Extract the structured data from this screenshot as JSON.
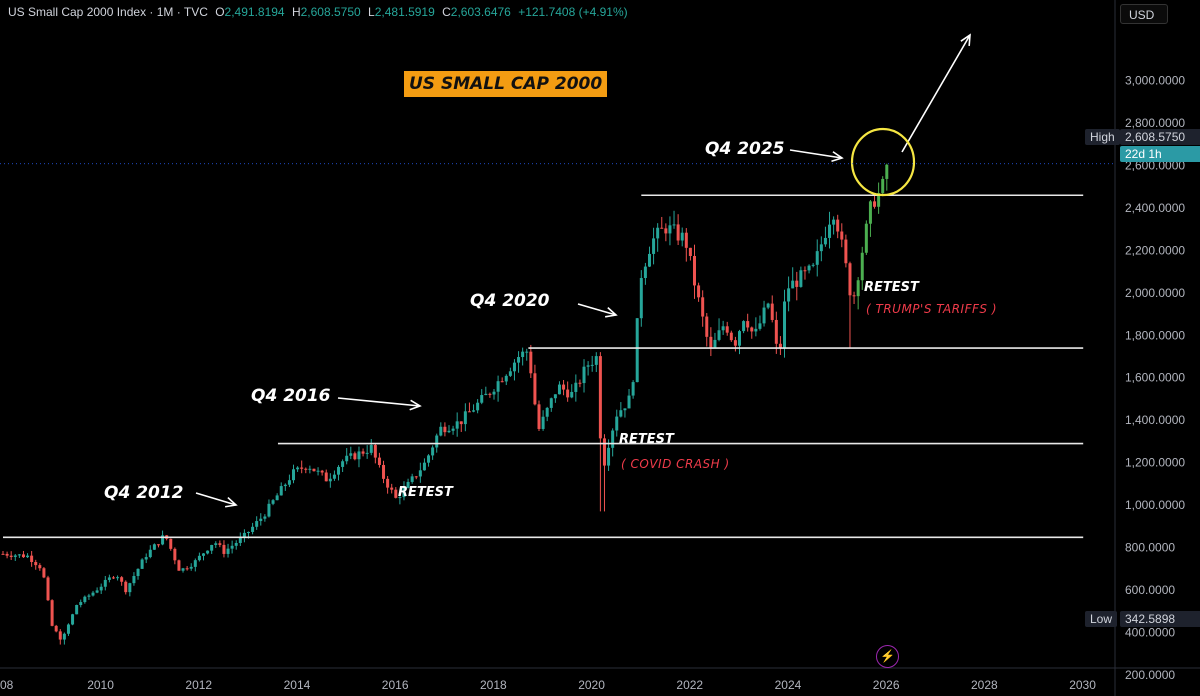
{
  "header": {
    "symbol": "US Small Cap 2000 Index · 1M · TVC",
    "open_label": "O",
    "open": "2,491.8194",
    "high_label": "H",
    "high": "2,608.5750",
    "low_label": "L",
    "low": "2,481.5919",
    "close_label": "C",
    "close": "2,603.6476",
    "change": "+121.7408 (+4.91%)"
  },
  "currency": "USD",
  "price_tags": {
    "high_label": "High",
    "high_value": "2,608.5750",
    "time_to_close": "22d 1h",
    "low_label": "Low",
    "low_value": "342.5898"
  },
  "annotations": {
    "title": "US SMALL CAP 2000",
    "q4_2012": "Q4 2012",
    "q4_2016": "Q4 2016",
    "q4_2020": "Q4 2020",
    "q4_2025": "Q4 2025",
    "retest_2016": "RETEST",
    "retest_2020": "RETEST",
    "covid": "( COVID CRASH )",
    "retest_2025": "RETEST",
    "tariffs": "( TRUMP'S TARIFFS )"
  },
  "icons": {
    "replay": "lightning-icon"
  },
  "colors": {
    "up": "#26a69a",
    "up_bright": "#4caf50",
    "down": "#ef5350",
    "highlight": "#f5e642",
    "title_bg": "#f39c12",
    "tariff_text": "#ef3b4a"
  },
  "chart_data": {
    "type": "candlestick",
    "interval": "1M",
    "x_ticks": [
      "08",
      "2010",
      "2012",
      "2014",
      "2016",
      "2018",
      "2020",
      "2022",
      "2024",
      "2026",
      "2028",
      "2030"
    ],
    "y_ticks": [
      "3,000.0000",
      "2,800.0000",
      "2,600.0000",
      "2,400.0000",
      "2,200.0000",
      "2,000.0000",
      "1,800.0000",
      "1,600.0000",
      "1,400.0000",
      "1,200.0000",
      "1,000.0000",
      "800.0000",
      "600.0000",
      "400.0000",
      "200.0000"
    ],
    "ylim": [
      140,
      3160
    ],
    "xlim": [
      2008.0,
      2030.6
    ],
    "path": [
      [
        2008.0,
        770
      ],
      [
        2008.5,
        760
      ],
      [
        2008.8,
        700
      ],
      [
        2009.0,
        430
      ],
      [
        2009.2,
        360
      ],
      [
        2009.5,
        530
      ],
      [
        2009.9,
        600
      ],
      [
        2010.3,
        680
      ],
      [
        2010.5,
        600
      ],
      [
        2010.9,
        760
      ],
      [
        2011.3,
        860
      ],
      [
        2011.6,
        690
      ],
      [
        2011.9,
        730
      ],
      [
        2012.3,
        830
      ],
      [
        2012.5,
        780
      ],
      [
        2012.9,
        850
      ],
      [
        2013.3,
        950
      ],
      [
        2013.9,
        1150
      ],
      [
        2014.2,
        1190
      ],
      [
        2014.6,
        1120
      ],
      [
        2014.9,
        1205
      ],
      [
        2015.5,
        1270
      ],
      [
        2015.7,
        1150
      ],
      [
        2016.0,
        1030
      ],
      [
        2016.2,
        1080
      ],
      [
        2016.6,
        1200
      ],
      [
        2016.9,
        1360
      ],
      [
        2017.3,
        1390
      ],
      [
        2017.9,
        1530
      ],
      [
        2018.5,
        1700
      ],
      [
        2018.7,
        1730
      ],
      [
        2018.9,
        1350
      ],
      [
        2019.3,
        1560
      ],
      [
        2019.6,
        1520
      ],
      [
        2019.9,
        1660
      ],
      [
        2020.1,
        1700
      ],
      [
        2020.2,
        1150
      ],
      [
        2020.35,
        1310
      ],
      [
        2020.5,
        1430
      ],
      [
        2020.8,
        1510
      ],
      [
        2020.9,
        1800
      ],
      [
        2021.0,
        2090
      ],
      [
        2021.2,
        2240
      ],
      [
        2021.5,
        2310
      ],
      [
        2021.9,
        2250
      ],
      [
        2022.1,
        2030
      ],
      [
        2022.4,
        1720
      ],
      [
        2022.7,
        1860
      ],
      [
        2022.9,
        1760
      ],
      [
        2023.1,
        1900
      ],
      [
        2023.3,
        1790
      ],
      [
        2023.6,
        1960
      ],
      [
        2023.8,
        1670
      ],
      [
        2023.95,
        2020
      ],
      [
        2024.3,
        2080
      ],
      [
        2024.5,
        2110
      ],
      [
        2024.9,
        2400
      ],
      [
        2025.0,
        2320
      ],
      [
        2025.2,
        2080
      ],
      [
        2025.3,
        1950
      ],
      [
        2025.5,
        2200
      ],
      [
        2025.7,
        2430
      ],
      [
        2025.9,
        2480
      ],
      [
        2026.0,
        2600
      ]
    ],
    "extremes": {
      "high": 2608.575,
      "low": 342.5898,
      "high_date": 2026.0,
      "low_date": 2009.2
    },
    "levels": [
      {
        "value": 848,
        "x0": 2008.0,
        "x1": 2030.0
      },
      {
        "value": 1290,
        "x0": 2013.6,
        "x1": 2030.0
      },
      {
        "value": 1740,
        "x0": 2018.7,
        "x1": 2030.0
      },
      {
        "value": 2460,
        "x0": 2021.0,
        "x1": 2030.0
      }
    ]
  }
}
